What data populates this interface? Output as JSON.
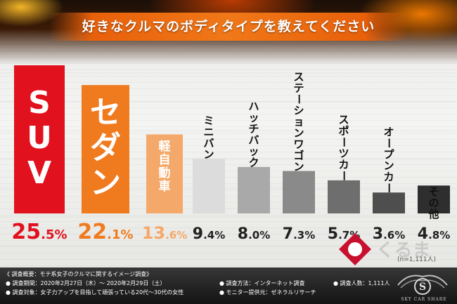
{
  "title": "好きなクルマのボディタイプを教えてください",
  "chart_data": {
    "type": "bar",
    "title": "好きなクルマのボディタイプを教えてください",
    "categories": [
      "SUV",
      "セダン",
      "軽自動車",
      "ミニバン",
      "ハッチバック",
      "ステーションワゴン",
      "スポーツカー",
      "オープンカー",
      "その他"
    ],
    "values": [
      25.5,
      22.1,
      13.6,
      9.4,
      8.0,
      7.3,
      5.7,
      3.6,
      4.8
    ],
    "value_int": [
      "25",
      "22",
      "13",
      "9",
      "8",
      "7",
      "5",
      "3",
      "4"
    ],
    "value_dec": [
      ".5%",
      ".1%",
      ".6%",
      ".4%",
      ".0%",
      ".3%",
      ".7%",
      ".6%",
      ".8%"
    ],
    "ylim": [
      0,
      25.5
    ],
    "grid": false,
    "colors": [
      "#e1111e",
      "#f07a1e",
      "#f4a96a",
      "#dcdcdc",
      "#a9a9a9",
      "#8a8a8a",
      "#6e6e6e",
      "#4e4e4e",
      "#2e2e2e"
    ],
    "value_colors": [
      "#e1111e",
      "#f07a1e",
      "#f4a96a",
      "#222222",
      "#222222",
      "#222222",
      "#222222",
      "#222222",
      "#222222"
    ],
    "label_colors": [
      "#ffffff",
      "#ffffff",
      "#ffffff",
      "#111111",
      "#111111",
      "#111111",
      "#111111",
      "#111111",
      "#111111"
    ]
  },
  "survey": {
    "summary": "《 調査概要：モテ系女子のクルマに関するイメージ調査》",
    "period": "● 調査期間：2020年2月27日（木）～ 2020年2月29日（土）",
    "target": "● 調査対象：女子力アップを目指して頑張っている20代～30代の女性",
    "method": "● 調査方法：インターネット調査",
    "provider": "● モニター提供元：ゼネラルリサーチ",
    "count": "● 調査人数：1,111人"
  },
  "n_label": "(n=1,111人)",
  "watermark": "くるま",
  "brand": "SKY CAR SHARE"
}
